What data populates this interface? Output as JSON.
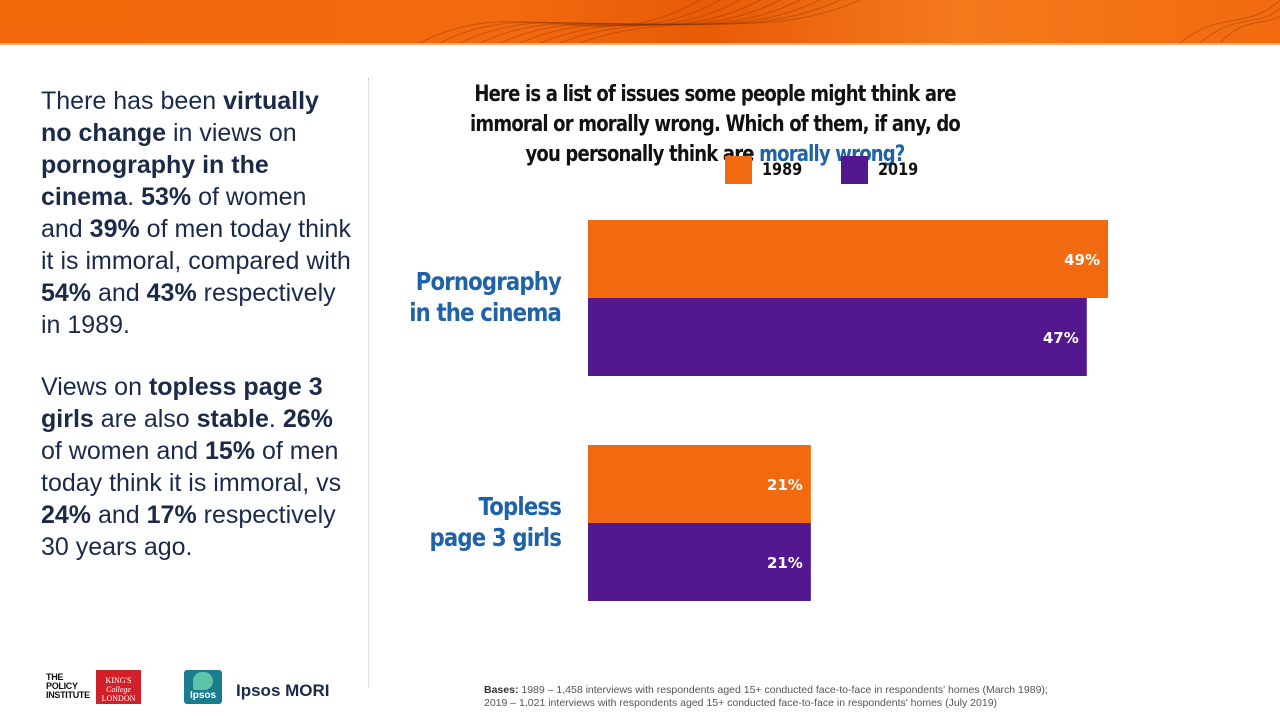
{
  "left_panel": {
    "p1": [
      {
        "t": "There has been ",
        "b": false
      },
      {
        "t": "virtually no change",
        "b": true
      },
      {
        "t": " in views on ",
        "b": false
      },
      {
        "t": "pornography in the cinema",
        "b": true
      },
      {
        "t": ". ",
        "b": false
      },
      {
        "t": "53%",
        "b": true
      },
      {
        "t": " of women and ",
        "b": false
      },
      {
        "t": "39%",
        "b": true
      },
      {
        "t": " of men today think it is immoral, compared with ",
        "b": false
      },
      {
        "t": "54%",
        "b": true
      },
      {
        "t": " and ",
        "b": false
      },
      {
        "t": "43%",
        "b": true
      },
      {
        "t": " respectively in 1989.",
        "b": false
      }
    ],
    "p2": [
      {
        "t": "Views on ",
        "b": false
      },
      {
        "t": "topless page 3 girls",
        "b": true
      },
      {
        "t": " are also ",
        "b": false
      },
      {
        "t": "stable",
        "b": true
      },
      {
        "t": ". ",
        "b": false
      },
      {
        "t": "26%",
        "b": true
      },
      {
        "t": " of women and ",
        "b": false
      },
      {
        "t": "15%",
        "b": true
      },
      {
        "t": " of men today think it is immoral, vs ",
        "b": false
      },
      {
        "t": "24%",
        "b": true
      },
      {
        "t": " and ",
        "b": false
      },
      {
        "t": "17%",
        "b": true
      },
      {
        "t": " respectively 30 years ago.",
        "b": false
      }
    ]
  },
  "chart_data": {
    "type": "bar",
    "orientation": "horizontal",
    "title_main": "Here is a list of issues some people might think are immoral or morally wrong. Which of them, if any, do you personally think are ",
    "title_highlight": "morally wrong?",
    "categories": [
      {
        "line1": "Pornography",
        "line2": "in the cinema"
      },
      {
        "line1": "Topless",
        "line2": "page 3 girls"
      }
    ],
    "series": [
      {
        "name": "1989",
        "color": "#f26a0f",
        "values": [
          49,
          21
        ],
        "labels": [
          "49%",
          "21%"
        ]
      },
      {
        "name": "2019",
        "color": "#53188f",
        "values": [
          47,
          21
        ],
        "labels": [
          "47%",
          "21%"
        ]
      }
    ],
    "xlim": [
      0,
      60
    ],
    "legend_position": "top",
    "grid": false
  },
  "footer": {
    "bases_label": "Bases:",
    "bases_line1": " 1989 – 1,458 interviews with respondents aged 15+ conducted face-to-face in respondents' homes (March 1989);",
    "bases_line2": "2019 – 1,021 interviews with respondents aged 15+ conducted face-to-face in respondents' homes (July 2019)"
  },
  "logos": {
    "policy": [
      "THE",
      "POLICY",
      "INSTITUTE"
    ],
    "kings": [
      "KING'S",
      "College",
      "LONDON"
    ],
    "ipsos": "Ipsos",
    "ipsos_mori": "Ipsos MORI"
  },
  "colors": {
    "accent_orange": "#f26a0f",
    "accent_purple": "#53188f",
    "highlight_blue": "#1f62a8",
    "text_navy": "#1c2a4a"
  }
}
